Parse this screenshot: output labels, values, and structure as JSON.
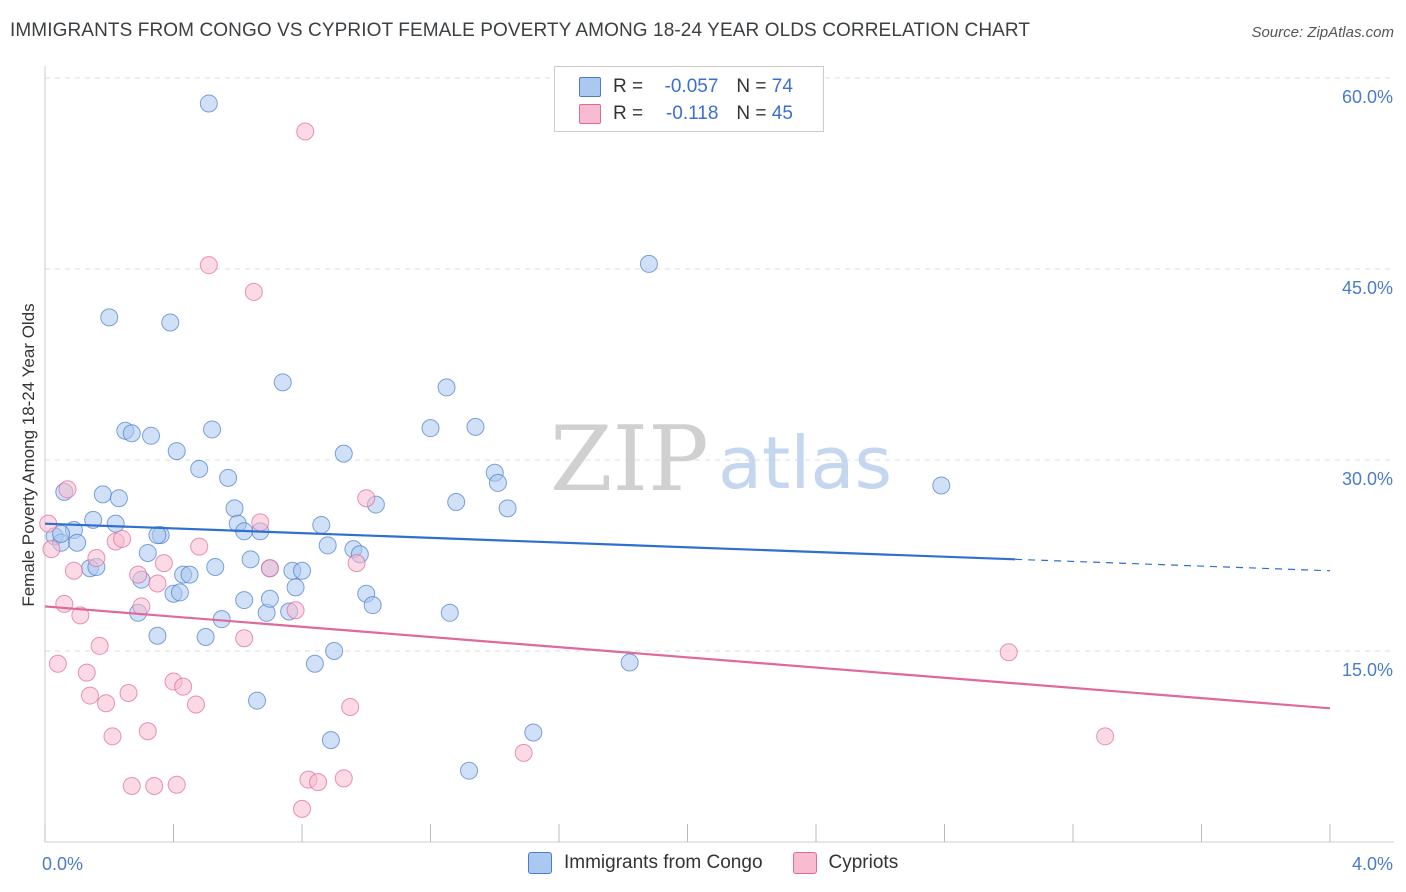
{
  "title": "IMMIGRANTS FROM CONGO VS CYPRIOT FEMALE POVERTY AMONG 18-24 YEAR OLDS CORRELATION CHART",
  "source": "Source: ZipAtlas.com",
  "watermark": {
    "zip": "ZIP",
    "atlas": "atlas"
  },
  "legend": {
    "rows": [
      {
        "r_label": "R =",
        "r_value": "-0.057",
        "n_label": "N =",
        "n_value": "74",
        "color": "#aac8f0"
      },
      {
        "r_label": "R =",
        "r_value": "-0.118",
        "n_label": "N =",
        "n_value": "45",
        "color": "#f7bcd0"
      }
    ]
  },
  "bottom_legend": [
    {
      "label": "Immigrants from Congo",
      "color": "#aac8f0"
    },
    {
      "label": "Cypriots",
      "color": "#f7bcd0"
    }
  ],
  "chart_data": {
    "type": "scatter",
    "title": "IMMIGRANTS FROM CONGO VS CYPRIOT FEMALE POVERTY AMONG 18-24 YEAR OLDS CORRELATION CHART",
    "xlabel": "",
    "ylabel": "Female Poverty Among 18-24 Year Olds",
    "xlim": [
      0,
      4.2
    ],
    "ylim": [
      0,
      60
    ],
    "x_tick_labels": [
      "0.0%",
      "4.0%"
    ],
    "y_ticks": [
      15,
      30,
      45,
      60
    ],
    "y_tick_labels": [
      "15.0%",
      "30.0%",
      "45.0%",
      "60.0%"
    ],
    "grid": true,
    "series": [
      {
        "name": "Immigrants from Congo",
        "color": "#4a7cc9",
        "fill": "#aac8f0",
        "trend": {
          "x0": 0.0,
          "y0": 25.0,
          "x1": 3.02,
          "y1": 22.2,
          "dash_x1": 4.0,
          "dash_y1": 21.3
        },
        "points": [
          [
            0.03,
            24.0
          ],
          [
            0.05,
            23.5
          ],
          [
            0.06,
            27.5
          ],
          [
            0.09,
            24.5
          ],
          [
            0.1,
            23.5
          ],
          [
            0.14,
            21.5
          ],
          [
            0.15,
            25.3
          ],
          [
            0.16,
            21.6
          ],
          [
            0.18,
            27.3
          ],
          [
            0.2,
            41.2
          ],
          [
            0.22,
            25.0
          ],
          [
            0.23,
            27.0
          ],
          [
            0.25,
            32.3
          ],
          [
            0.27,
            32.1
          ],
          [
            0.29,
            18.0
          ],
          [
            0.3,
            20.6
          ],
          [
            0.32,
            22.7
          ],
          [
            0.33,
            31.9
          ],
          [
            0.35,
            16.2
          ],
          [
            0.36,
            24.1
          ],
          [
            0.39,
            40.8
          ],
          [
            0.4,
            19.5
          ],
          [
            0.41,
            30.7
          ],
          [
            0.42,
            19.6
          ],
          [
            0.43,
            21.0
          ],
          [
            0.45,
            21.0
          ],
          [
            0.48,
            29.3
          ],
          [
            0.5,
            16.1
          ],
          [
            0.51,
            58.0
          ],
          [
            0.52,
            32.4
          ],
          [
            0.53,
            21.6
          ],
          [
            0.55,
            17.5
          ],
          [
            0.57,
            28.6
          ],
          [
            0.59,
            26.2
          ],
          [
            0.6,
            25.0
          ],
          [
            0.62,
            19.0
          ],
          [
            0.64,
            22.2
          ],
          [
            0.66,
            11.1
          ],
          [
            0.67,
            24.4
          ],
          [
            0.69,
            18.0
          ],
          [
            0.7,
            19.1
          ],
          [
            0.74,
            36.1
          ],
          [
            0.76,
            18.1
          ],
          [
            0.77,
            21.3
          ],
          [
            0.78,
            20.0
          ],
          [
            0.8,
            21.3
          ],
          [
            0.84,
            14.0
          ],
          [
            0.86,
            24.9
          ],
          [
            0.88,
            23.3
          ],
          [
            0.89,
            8.0
          ],
          [
            0.9,
            15.0
          ],
          [
            0.93,
            30.5
          ],
          [
            0.96,
            23.0
          ],
          [
            0.98,
            22.6
          ],
          [
            1.0,
            19.5
          ],
          [
            1.02,
            18.6
          ],
          [
            1.03,
            26.5
          ],
          [
            1.2,
            32.5
          ],
          [
            1.25,
            35.7
          ],
          [
            1.26,
            18.0
          ],
          [
            1.28,
            26.7
          ],
          [
            1.32,
            5.6
          ],
          [
            1.34,
            32.6
          ],
          [
            1.4,
            29.0
          ],
          [
            1.41,
            28.2
          ],
          [
            1.44,
            26.2
          ],
          [
            1.52,
            8.6
          ],
          [
            1.82,
            14.1
          ],
          [
            1.88,
            45.4
          ],
          [
            2.79,
            28.0
          ],
          [
            0.05,
            24.2
          ],
          [
            0.62,
            24.4
          ],
          [
            0.35,
            24.1
          ],
          [
            0.7,
            21.5
          ]
        ]
      },
      {
        "name": "Cypriots",
        "color": "#e0689a",
        "fill": "#f7bcd0",
        "trend": {
          "x0": 0.0,
          "y0": 18.5,
          "x1": 4.0,
          "y1": 10.5
        },
        "points": [
          [
            0.01,
            25.0
          ],
          [
            0.02,
            23.0
          ],
          [
            0.04,
            14.0
          ],
          [
            0.06,
            18.7
          ],
          [
            0.07,
            27.7
          ],
          [
            0.09,
            21.3
          ],
          [
            0.11,
            17.8
          ],
          [
            0.13,
            13.3
          ],
          [
            0.14,
            11.5
          ],
          [
            0.16,
            22.3
          ],
          [
            0.17,
            15.4
          ],
          [
            0.19,
            10.9
          ],
          [
            0.21,
            8.3
          ],
          [
            0.22,
            23.6
          ],
          [
            0.24,
            23.8
          ],
          [
            0.26,
            11.7
          ],
          [
            0.27,
            4.4
          ],
          [
            0.29,
            21.0
          ],
          [
            0.3,
            18.5
          ],
          [
            0.32,
            8.7
          ],
          [
            0.34,
            4.4
          ],
          [
            0.35,
            20.3
          ],
          [
            0.37,
            21.9
          ],
          [
            0.4,
            12.6
          ],
          [
            0.41,
            4.5
          ],
          [
            0.43,
            12.2
          ],
          [
            0.47,
            10.8
          ],
          [
            0.48,
            23.2
          ],
          [
            0.51,
            45.3
          ],
          [
            0.62,
            16.0
          ],
          [
            0.65,
            43.2
          ],
          [
            0.67,
            25.1
          ],
          [
            0.7,
            21.5
          ],
          [
            0.78,
            18.2
          ],
          [
            0.8,
            2.6
          ],
          [
            0.81,
            55.8
          ],
          [
            0.82,
            4.9
          ],
          [
            0.85,
            4.7
          ],
          [
            0.93,
            5.0
          ],
          [
            0.95,
            10.6
          ],
          [
            0.97,
            21.9
          ],
          [
            1.0,
            27.0
          ],
          [
            1.49,
            7.0
          ],
          [
            3.0,
            14.9
          ],
          [
            3.3,
            8.3
          ]
        ]
      }
    ]
  }
}
